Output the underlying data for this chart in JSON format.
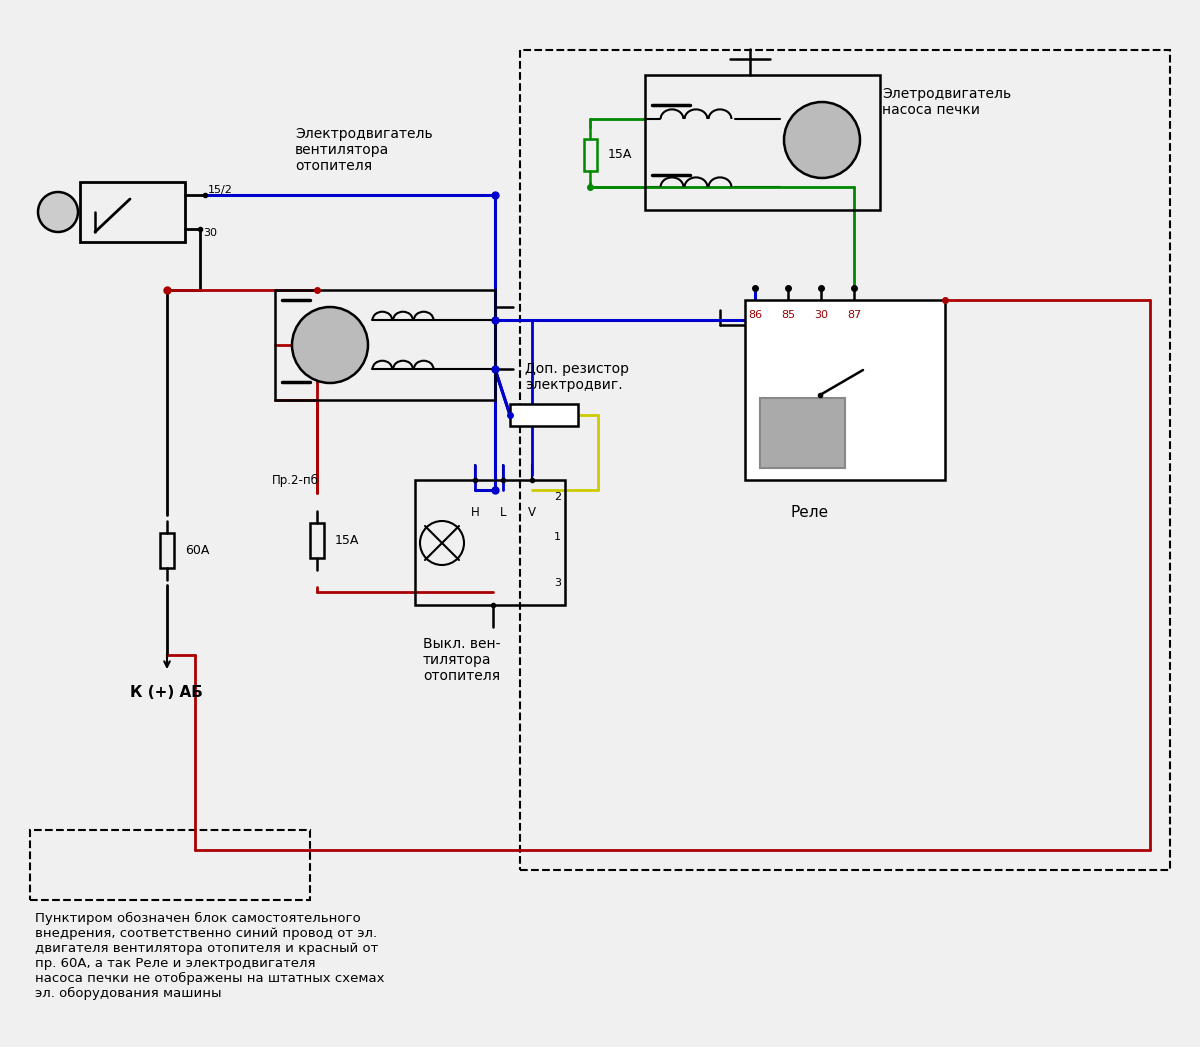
{
  "bg_color": "#f0f0f0",
  "colors": {
    "blue": "#0000cc",
    "red": "#aa0000",
    "green": "#008800",
    "yellow": "#cccc00",
    "black": "#000000",
    "gray": "#888888",
    "light_gray": "#aaaaaa",
    "relay_fill": "#ffffff",
    "dred": "#990000"
  },
  "labels": {
    "motor1_title": "Электродвигатель\nвентилятора\nотопителя",
    "motor2_title": "Элетродвигатель\nнасоса печки",
    "resistor_title": "Доп. резистор\nэлектродвиг.",
    "switch_title": "Выкл. вен-\nтилятора\nотопителя",
    "relay_title": "Реле",
    "battery_label": "К (+) АБ",
    "fuse60_label": "60А",
    "fuse15_pr": "15А",
    "fuse15_m2": "15А",
    "pr2_label": "Пр.2-пб",
    "pin_152": "15/2",
    "pin_30": "30",
    "relay_pins": [
      "86",
      "85",
      "30",
      "87"
    ],
    "note": "Пунктиром обозначен блок самостоятельного\nвнедрения, соответственно синий провод от эл.\nдвигателя вентилятора отопителя и красный от\nпр. 60А, а так Реле и электродвигателя\nнасоса печки не отображены на штатных схемах\nэл. оборудования машины"
  }
}
